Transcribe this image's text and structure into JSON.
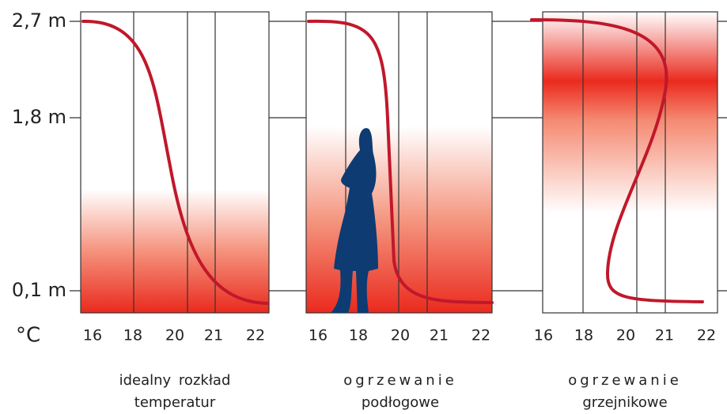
{
  "axis": {
    "y_labels": [
      "2,7 m",
      "1,8 m",
      "0,1 m"
    ],
    "unit": "°C"
  },
  "panels": [
    {
      "x_labels": [
        "16",
        "18",
        "20",
        "21",
        "22"
      ],
      "caption": [
        "idealny  rozkład",
        "temperatur"
      ]
    },
    {
      "x_labels": [
        "16",
        "18",
        "20",
        "21",
        "22"
      ],
      "caption": [
        "ogrzewanie",
        "podłogowe"
      ]
    },
    {
      "x_labels": [
        "16",
        "18",
        "20",
        "21",
        "22"
      ],
      "caption": [
        "ogrzewanie",
        "grzejnikowe"
      ]
    }
  ]
}
